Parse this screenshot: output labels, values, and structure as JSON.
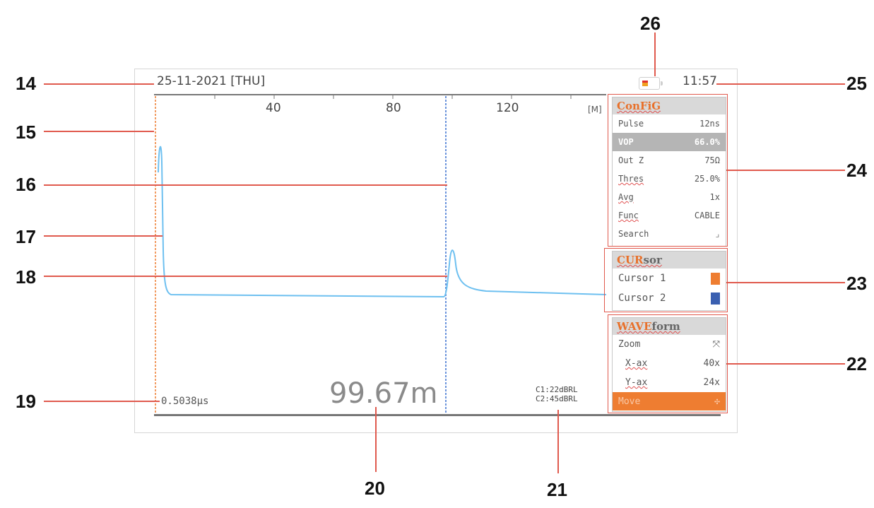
{
  "status_bar": {
    "date": "25-11-2021 [THU]",
    "time": "11:57"
  },
  "axis": {
    "ticks": [
      "40",
      "80",
      "120"
    ],
    "unit": "[M]"
  },
  "readouts": {
    "time": "0.5038μs",
    "distance": "99.67m",
    "c1": "C1:22dBRL",
    "c2": "C2:45dBRL"
  },
  "config": {
    "title_accent": "ConFiG",
    "title_rest": "",
    "rows": [
      {
        "label": "Pulse",
        "value": "12ns"
      },
      {
        "label": "VOP",
        "value": "66.0%"
      },
      {
        "label": "Out Z",
        "value": "75Ω"
      },
      {
        "label": "Thres",
        "value": "25.0%"
      },
      {
        "label": "Avg",
        "value": "1x"
      },
      {
        "label": "Func",
        "value": "CABLE"
      },
      {
        "label": "Search",
        "value": "⌟"
      }
    ]
  },
  "cursor": {
    "title_accent": "CUR",
    "title_rest": "sor",
    "rows": [
      {
        "label": "Cursor 1",
        "color": "#ee7d31"
      },
      {
        "label": "Cursor 2",
        "color": "#3a5fb0"
      }
    ]
  },
  "waveform": {
    "title_accent": "WAVE",
    "title_rest": "form",
    "rows": [
      {
        "label": "Zoom",
        "value": "⤧"
      },
      {
        "label": "X-ax",
        "value": "40x"
      },
      {
        "label": "Y-ax",
        "value": "24x"
      },
      {
        "label": "Move",
        "value": "✣"
      }
    ]
  },
  "callouts": [
    "14",
    "15",
    "16",
    "17",
    "18",
    "19",
    "20",
    "21",
    "22",
    "23",
    "24",
    "25",
    "26"
  ],
  "colors": {
    "trace": "#6ec0f0",
    "cursor_line": "#3a70d0",
    "accent": "#ee7d31",
    "callout_line": "#e05a4e"
  }
}
